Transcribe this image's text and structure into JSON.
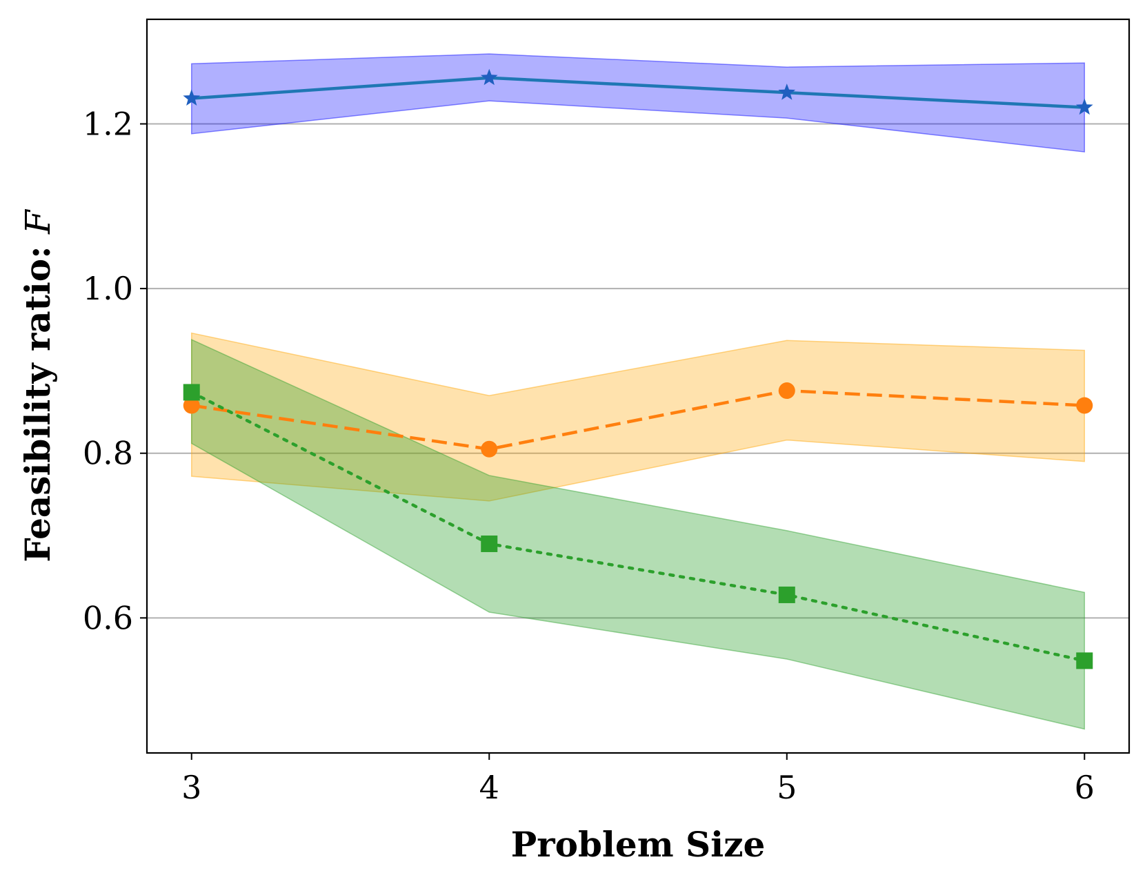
{
  "chart_data": {
    "type": "line",
    "title": "",
    "xlabel": "Problem Size",
    "ylabel": "Feasibility ratio: ",
    "ylabel_symbol": "F",
    "x": [
      3,
      4,
      5,
      6
    ],
    "xlim": [
      2.85,
      6.15
    ],
    "ylim": [
      0.436,
      1.327
    ],
    "xticks": [
      {
        "value": 3,
        "label": "3"
      },
      {
        "value": 4,
        "label": "4"
      },
      {
        "value": 5,
        "label": "5"
      },
      {
        "value": 6,
        "label": "6"
      }
    ],
    "yticks": [
      {
        "value": 0.6,
        "label": "0.6"
      },
      {
        "value": 0.8,
        "label": "0.8"
      },
      {
        "value": 1.0,
        "label": "1.0"
      },
      {
        "value": 1.2,
        "label": "1.2"
      }
    ],
    "grid": "horizontal",
    "legend": "none",
    "series": [
      {
        "name": "blue",
        "values": [
          1.231,
          1.256,
          1.238,
          1.22
        ],
        "band_lower": [
          1.188,
          1.228,
          1.207,
          1.166
        ],
        "band_upper": [
          1.273,
          1.285,
          1.269,
          1.274
        ],
        "line_color": "#1f77b4",
        "band_color": "#0000ff",
        "band_opacity": 0.31,
        "marker": "star",
        "marker_color": "#1f5fbf",
        "dash": "solid"
      },
      {
        "name": "orange",
        "values": [
          0.858,
          0.805,
          0.876,
          0.858
        ],
        "band_lower": [
          0.772,
          0.742,
          0.816,
          0.79
        ],
        "band_upper": [
          0.946,
          0.87,
          0.937,
          0.925
        ],
        "line_color": "#ff7f0e",
        "band_color": "#ffa500",
        "band_opacity": 0.32,
        "marker": "circle",
        "marker_color": "#ff7f0e",
        "dash": "dashed"
      },
      {
        "name": "green",
        "values": [
          0.874,
          0.69,
          0.628,
          0.548
        ],
        "band_lower": [
          0.812,
          0.607,
          0.55,
          0.465
        ],
        "band_upper": [
          0.938,
          0.773,
          0.706,
          0.631
        ],
        "line_color": "#2ca02c",
        "band_color": "#2ca02c",
        "band_opacity": 0.36,
        "marker": "square",
        "marker_color": "#2ca02c",
        "dash": "dotted"
      }
    ]
  }
}
